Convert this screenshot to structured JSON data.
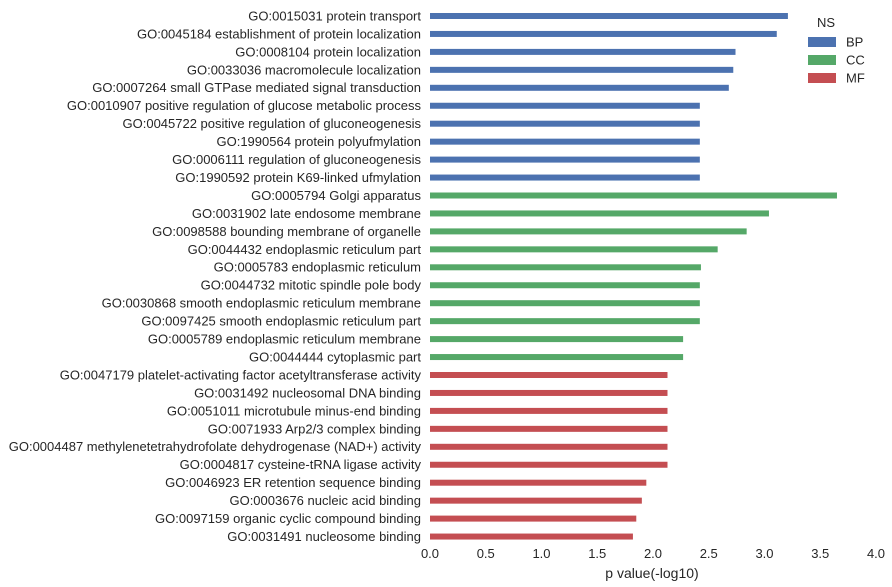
{
  "chart_data": {
    "type": "bar",
    "orientation": "horizontal",
    "xlabel": "p value(-log10)",
    "xlim": [
      0.0,
      4.0
    ],
    "xticks": [
      "0.0",
      "0.5",
      "1.0",
      "1.5",
      "2.0",
      "2.5",
      "3.0",
      "3.5",
      "4.0"
    ],
    "grid": false,
    "legend": {
      "title": "NS",
      "placement": "top-right",
      "entries": [
        {
          "name": "BP",
          "color": "#4c72b0"
        },
        {
          "name": "CC",
          "color": "#55a868"
        },
        {
          "name": "MF",
          "color": "#c44e52"
        }
      ]
    },
    "categories": [
      "GO:0015031 protein transport",
      "GO:0045184 establishment of protein localization",
      "GO:0008104 protein localization",
      "GO:0033036 macromolecule localization",
      "GO:0007264 small GTPase mediated signal transduction",
      "GO:0010907 positive regulation of glucose metabolic process",
      "GO:0045722 positive regulation of gluconeogenesis",
      "GO:1990564 protein polyufmylation",
      "GO:0006111 regulation of gluconeogenesis",
      "GO:1990592 protein K69-linked ufmylation",
      "GO:0005794 Golgi apparatus",
      "GO:0031902 late endosome membrane",
      "GO:0098588 bounding membrane of organelle",
      "GO:0044432 endoplasmic reticulum part",
      "GO:0005783 endoplasmic reticulum",
      "GO:0044732 mitotic spindle pole body",
      "GO:0030868 smooth endoplasmic reticulum membrane",
      "GO:0097425 smooth endoplasmic reticulum part",
      "GO:0005789 endoplasmic reticulum membrane",
      "GO:0044444 cytoplasmic part",
      "GO:0047179 platelet-activating factor acetyltransferase activity",
      "GO:0031492 nucleosomal DNA binding",
      "GO:0051011 microtubule minus-end binding",
      "GO:0071933 Arp2/3 complex binding",
      "GO:0004487 methylenetetrahydrofolate dehydrogenase (NAD+) activity",
      "GO:0004817 cysteine-tRNA ligase activity",
      "GO:0046923 ER retention sequence binding",
      "GO:0003676 nucleic acid binding",
      "GO:0097159 organic cyclic compound binding",
      "GO:0031491 nucleosome binding"
    ],
    "values": [
      3.21,
      3.11,
      2.74,
      2.72,
      2.68,
      2.42,
      2.42,
      2.42,
      2.42,
      2.42,
      3.65,
      3.04,
      2.84,
      2.58,
      2.43,
      2.42,
      2.42,
      2.42,
      2.27,
      2.27,
      2.13,
      2.13,
      2.13,
      2.13,
      2.13,
      2.13,
      1.94,
      1.9,
      1.85,
      1.82
    ],
    "groups": [
      "BP",
      "BP",
      "BP",
      "BP",
      "BP",
      "BP",
      "BP",
      "BP",
      "BP",
      "BP",
      "CC",
      "CC",
      "CC",
      "CC",
      "CC",
      "CC",
      "CC",
      "CC",
      "CC",
      "CC",
      "MF",
      "MF",
      "MF",
      "MF",
      "MF",
      "MF",
      "MF",
      "MF",
      "MF",
      "MF"
    ]
  }
}
